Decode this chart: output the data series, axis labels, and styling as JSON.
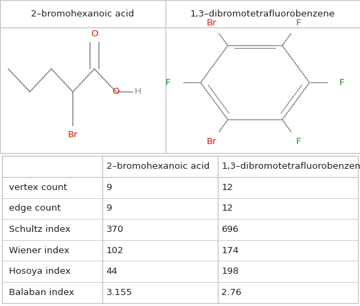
{
  "col1_header": "2–bromohexanoic acid",
  "col2_header": "1,3–dibromotetrafluorobenzene",
  "rows": [
    {
      "label": "vertex count",
      "val1": "9",
      "val2": "12"
    },
    {
      "label": "edge count",
      "val1": "9",
      "val2": "12"
    },
    {
      "label": "Schultz index",
      "val1": "370",
      "val2": "696"
    },
    {
      "label": "Wiener index",
      "val1": "102",
      "val2": "174"
    },
    {
      "label": "Hosoya index",
      "val1": "44",
      "val2": "198"
    },
    {
      "label": "Balaban index",
      "val1": "3.155",
      "val2": "2.76"
    }
  ],
  "bg_color": "#ffffff",
  "border_color": "#bbbbbb",
  "text_color": "#222222",
  "bond_color": "#888888",
  "br_color": "#cc2200",
  "f_color": "#228b22",
  "o_color": "#cc2200",
  "font_size": 9.5,
  "mol_font_size": 9.5,
  "header_font_size": 9.5,
  "divx": 0.46
}
